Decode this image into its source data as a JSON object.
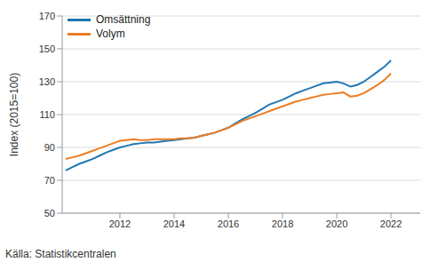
{
  "chart_data": {
    "type": "line",
    "y_label": "Index (2015=100)",
    "source": "Källa: Statistikcentralen",
    "legend": "top-left",
    "grid": true,
    "x": [
      2010,
      2010.25,
      2010.5,
      2010.75,
      2011,
      2011.25,
      2011.5,
      2011.75,
      2012,
      2012.25,
      2012.5,
      2012.75,
      2013,
      2013.25,
      2013.5,
      2013.75,
      2014,
      2014.25,
      2014.5,
      2014.75,
      2015,
      2015.25,
      2015.5,
      2015.75,
      2016,
      2016.25,
      2016.5,
      2016.75,
      2017,
      2017.25,
      2017.5,
      2017.75,
      2018,
      2018.25,
      2018.5,
      2018.75,
      2019,
      2019.25,
      2019.5,
      2019.75,
      2020,
      2020.25,
      2020.5,
      2020.75,
      2021,
      2021.25,
      2021.5,
      2021.75,
      2022
    ],
    "series": [
      {
        "name": "Omsättning",
        "color": "#1f77b4",
        "values": [
          76,
          78,
          80,
          81.5,
          83,
          85,
          87,
          88.5,
          90,
          91,
          92,
          92.5,
          93,
          93,
          93.5,
          94,
          94.5,
          95,
          95.5,
          96,
          97,
          98,
          99,
          100.5,
          102,
          104.5,
          107,
          109,
          111,
          113.5,
          116,
          117.5,
          119,
          121,
          123,
          124.5,
          126,
          127.5,
          129,
          129.5,
          130,
          129,
          127,
          128,
          130,
          133,
          136,
          139,
          143
        ]
      },
      {
        "name": "Volym",
        "color": "#ec7d23",
        "values": [
          83,
          84,
          85,
          86.5,
          88,
          89.5,
          91,
          92.5,
          94,
          94.5,
          95,
          94.5,
          94.5,
          95,
          95,
          95,
          95,
          95.5,
          95.5,
          96,
          97,
          98,
          99,
          100.5,
          102,
          104,
          106,
          107.5,
          109,
          110.5,
          112,
          113.5,
          115,
          116.5,
          118,
          119,
          120,
          121,
          122,
          122.5,
          123,
          123.5,
          121,
          121.5,
          123,
          125.5,
          128,
          131,
          135
        ]
      }
    ],
    "xlim": [
      2009.87,
      2023.08
    ],
    "xticks": [
      2012,
      2014,
      2016,
      2018,
      2020,
      2022
    ],
    "ylim": [
      50,
      170
    ],
    "yticks": [
      50,
      70,
      90,
      110,
      130,
      150,
      170
    ]
  }
}
